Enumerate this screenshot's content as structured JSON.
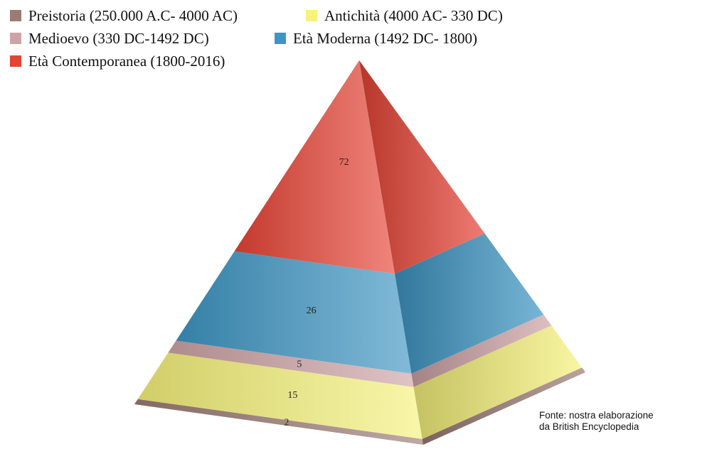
{
  "chart_data": {
    "type": "pyramid",
    "legend_position": "top-left",
    "series": [
      {
        "name": "Preistoria (250.000 A.C- 4000 AC)",
        "value": 2,
        "color": "#9b7b74"
      },
      {
        "name": "Antichità (4000 AC- 330 DC)",
        "value": 15,
        "color": "#f6f27a"
      },
      {
        "name": "Medioevo (330 DC-1492 DC)",
        "value": 5,
        "color": "#cea3a6"
      },
      {
        "name": "Età Moderna (1492 DC- 1800)",
        "value": 26,
        "color": "#3d95c3"
      },
      {
        "name": "Età Contemporanea (1800-2016)",
        "value": 72,
        "color": "#e64335"
      }
    ]
  },
  "source": {
    "line1": "Fonte: nostra elaborazione",
    "line2": "da British Encyclopedia"
  }
}
